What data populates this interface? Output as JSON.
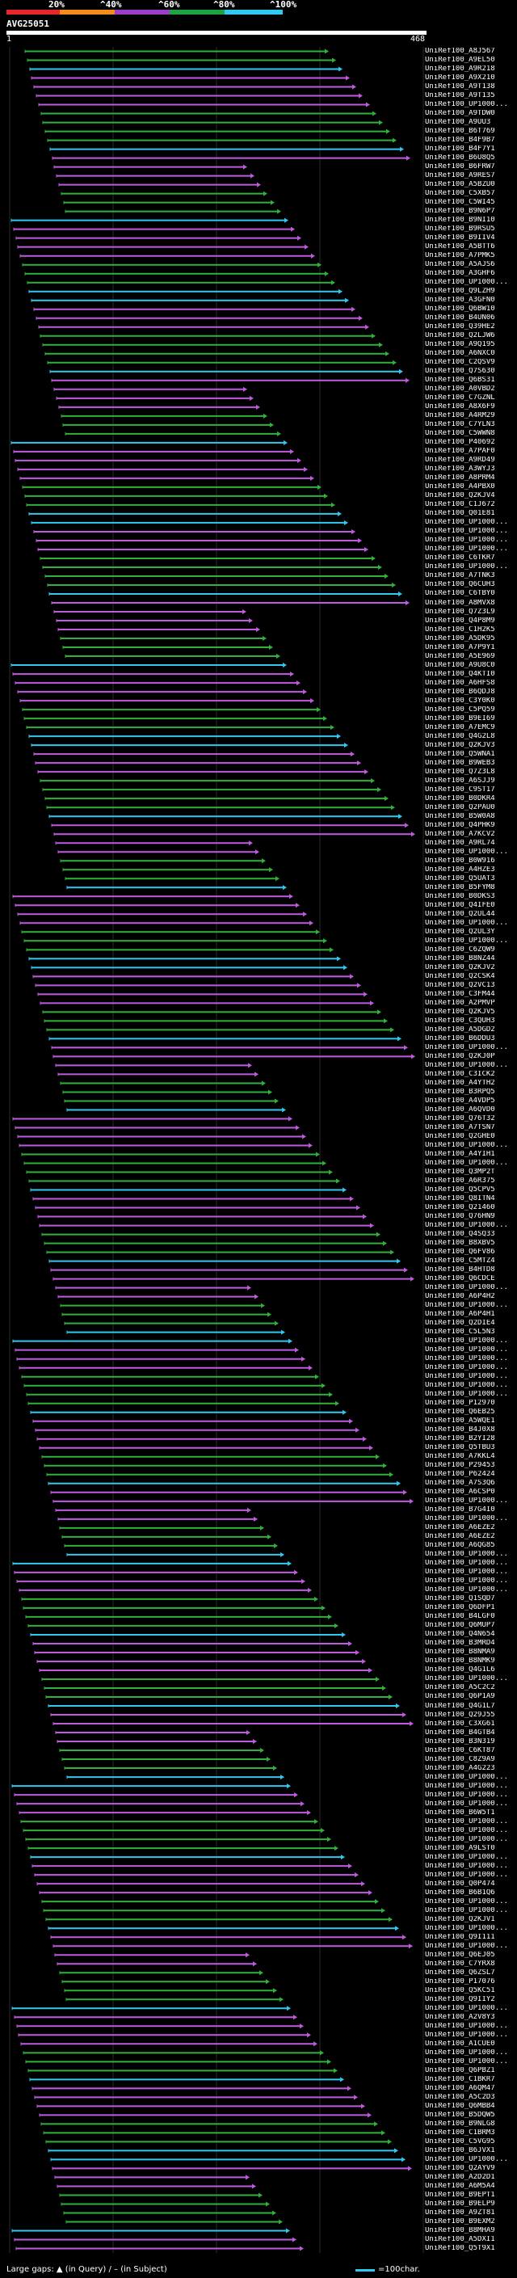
{
  "legend": {
    "labels": [
      "20%",
      "^40%",
      "^60%",
      "^80%",
      "^100%"
    ],
    "colors": [
      "#e8262b",
      "#f28c1d",
      "#9b3fcb",
      "#1fa340",
      "#30c9f0"
    ]
  },
  "query": {
    "id": "AVG25051",
    "start": "1",
    "end": "468"
  },
  "colors": {
    "magenta": "#c05be0",
    "green": "#31b03c",
    "cyan": "#2fc8f0",
    "background": "#000000",
    "grid": "#2a2a2a"
  },
  "hits": [
    "UniRef100_A8J567",
    "UniRef100_A9EL50",
    "UniRef100_A9R218",
    "UniRef100_A9X210",
    "UniRef100_A9T138",
    "UniRef100_A9T135",
    "UniRef100_UP1000...",
    "UniRef100_A9TDW0",
    "UniRef100_A9UU3",
    "UniRef100_B6T769",
    "UniRef100_B4F9B7",
    "UniRef100_B4F7Y1",
    "UniRef100_B6U8Q5",
    "UniRef100_B6FRW7",
    "UniRef100_A9RES7",
    "UniRef100_A5BZU0",
    "UniRef100_C5XB57",
    "UniRef100_C5WI45",
    "UniRef100_B9N6P7",
    "UniRef100_B9NI10",
    "UniRef100_B9RSU5",
    "UniRef100_B9IIV4",
    "UniRef100_A5BTT6",
    "UniRef100_A7PMK5",
    "UniRef100_A5AJS6",
    "UniRef100_A3GHF6",
    "UniRef100_UP1000...",
    "UniRef100_Q9LZH9",
    "UniRef100_A3GFN0",
    "UniRef100_Q6BW10",
    "UniRef100_B4UN06",
    "UniRef100_Q39HE2",
    "UniRef100_Q2LJW6",
    "UniRef100_A9Q195",
    "UniRef100_A6NXC0",
    "UniRef100_C2QSV9",
    "UniRef100_Q7S630",
    "UniRef100_Q6BS31",
    "UniRef100_A0VBD2",
    "UniRef100_C7GZNL",
    "UniRef100_A8X6F9",
    "UniRef100_A4RM29",
    "UniRef100_C7YLN3",
    "UniRef100_C5WWN8",
    "UniRef100_P40692",
    "UniRef100_A7PAF0",
    "UniRef100_A9RD49",
    "UniRef100_A3WYJ3",
    "UniRef100_A8PRM4",
    "UniRef100_A4PBX0",
    "UniRef100_Q2KJV4",
    "UniRef100_C1J672",
    "UniRef100_Q01E81",
    "UniRef100_UP1000...",
    "UniRef100_UP1000...",
    "UniRef100_UP1000...",
    "UniRef100_UP1000...",
    "UniRef100_C6TKR7",
    "UniRef100_UP1000...",
    "UniRef100_A7TNK3",
    "UniRef100_Q6CUH3",
    "UniRef100_C6TBY0",
    "UniRef100_A8MVX8",
    "UniRef100_Q7Z3L9",
    "UniRef100_Q4P8M9",
    "UniRef100_C1H2K5",
    "UniRef100_A5DK95",
    "UniRef100_A7P9Y1",
    "UniRef100_A5E969",
    "UniRef100_A9U8C0",
    "UniRef100_Q4KTI0",
    "UniRef100_A6HFS8",
    "UniRef100_B6QDJ8",
    "UniRef100_C3Y0K0",
    "UniRef100_C5PQ59",
    "UniRef100_B9EI69",
    "UniRef100_A7EMC9",
    "UniRef100_Q4G2L8",
    "UniRef100_Q2KJV3",
    "UniRef100_Q5WNA1",
    "UniRef100_B9WEB3",
    "UniRef100_Q7Z3L8",
    "UniRef100_A6SJJ9",
    "UniRef100_C9ST17",
    "UniRef100_B0DKR4",
    "UniRef100_Q2PAU0",
    "UniRef100_B5W0A8",
    "UniRef100_Q4PHK9",
    "UniRef100_A7KCV2",
    "UniRef100_A9RL74",
    "UniRef100_UP1000...",
    "UniRef100_B0W916",
    "UniRef100_A4HZE3",
    "UniRef100_Q5UAT3",
    "UniRef100_B5FYM8",
    "UniRef100_B0DKS3",
    "UniRef100_Q4IFE0",
    "UniRef100_Q2UL44",
    "UniRef100_UP1000...",
    "UniRef100_Q2UL3Y",
    "UniRef100_UP1000...",
    "UniRef100_C6ZQW9",
    "UniRef100_B8NZ44",
    "UniRef100_Q2KJV2",
    "UniRef100_Q2CSK4",
    "UniRef100_Q2VC13",
    "UniRef100_C3FM44",
    "UniRef100_A2PMVP",
    "UniRef100_Q2KJV5",
    "UniRef100_C3QUH3",
    "UniRef100_A5DGD2",
    "UniRef100_B6DDU3",
    "UniRef100_UP1000...",
    "UniRef100_Q2KJ0P",
    "UniRef100_UP1000...",
    "UniRef100_C3ICK2",
    "UniRef100_A4YTH2",
    "UniRef100_B3RPQ5",
    "UniRef100_A4VDP5",
    "UniRef100_A6QVD0",
    "UniRef100_Q76T32",
    "UniRef100_A7TSN7",
    "UniRef100_Q2GHE0",
    "UniRef100_UP1000...",
    "UniRef100_A4YIH1",
    "UniRef100_UP1000...",
    "UniRef100_Q3MP2T",
    "UniRef100_A6R375",
    "UniRef100_Q5CPV5",
    "UniRef100_Q8ITN4",
    "UniRef100_Q21460",
    "UniRef100_Q76HN9",
    "UniRef100_UP1000...",
    "UniRef100_Q4SQ33",
    "UniRef100_B8XBV5",
    "UniRef100_Q6FV86",
    "UniRef100_C5MTZ4",
    "UniRef100_B4HTD8",
    "UniRef100_Q6CDCE",
    "UniRef100_UP1000...",
    "UniRef100_A6P4H2",
    "UniRef100_UP1000...",
    "UniRef100_A6P4H1",
    "UniRef100_Q2DIE4",
    "UniRef100_C5L5N3",
    "UniRef100_UP1000...",
    "UniRef100_UP1000...",
    "UniRef100_UP1000...",
    "UniRef100_UP1000...",
    "UniRef100_UP1000...",
    "UniRef100_UP1000...",
    "UniRef100_UP1000...",
    "UniRef100_P12970",
    "UniRef100_Q6EB25",
    "UniRef100_A5WQE1",
    "UniRef100_B4J0X8",
    "UniRef100_B2YI28",
    "UniRef100_Q5TBU3",
    "UniRef100_A7KKL4",
    "UniRef100_P29453",
    "UniRef100_P62424",
    "UniRef100_A7S3Q6",
    "UniRef100_A6CSP0",
    "UniRef100_UP1000...",
    "UniRef100_B7G4I0",
    "UniRef100_UP1000...",
    "UniRef100_A6EZE2",
    "UniRef100_A6EZE2",
    "UniRef100_A6QG85",
    "UniRef100_UP1000...",
    "UniRef100_UP1000...",
    "UniRef100_UP1000...",
    "UniRef100_UP1000...",
    "UniRef100_UP1000...",
    "UniRef100_Q1SQD7",
    "UniRef100_Q6DFP1",
    "UniRef100_B4LGF0",
    "UniRef100_Q6MUP7",
    "UniRef100_Q4N654",
    "UniRef100_B3MRD4",
    "UniRef100_B8NMA9",
    "UniRef100_B8NMK9",
    "UniRef100_Q4G1L6",
    "UniRef100_UP1000...",
    "UniRef100_A5C2C2",
    "UniRef100_Q6P1A9",
    "UniRef100_Q4G1L7",
    "UniRef100_Q29J55",
    "UniRef100_C3XG61",
    "UniRef100_B4GTB4",
    "UniRef100_B3N319",
    "UniRef100_C6KT87",
    "UniRef100_C8Z9A9",
    "UniRef100_A4G223",
    "UniRef100_UP1000...",
    "UniRef100_UP1000...",
    "UniRef100_UP1000...",
    "UniRef100_UP1000...",
    "UniRef100_B6W5T1",
    "UniRef100_UP1000...",
    "UniRef100_UP1000...",
    "UniRef100_UP1000...",
    "UniRef100_A9LST0",
    "UniRef100_UP1000...",
    "UniRef100_UP1000...",
    "UniRef100_UP1000...",
    "UniRef100_Q0P474",
    "UniRef100_B6B1Q6",
    "UniRef100_UP1000...",
    "UniRef100_UP1000...",
    "UniRef100_Q2KJV1",
    "UniRef100_UP1000...",
    "UniRef100_Q9I111",
    "UniRef100_UP1000...",
    "UniRef100_Q6EJ05",
    "UniRef100_C7YRX8",
    "UniRef100_Q6ZSL7",
    "UniRef100_P17076",
    "UniRef100_Q5KC51",
    "UniRef100_Q9IIY2",
    "UniRef100_UP1000...",
    "UniRef100_A2V8Y3",
    "UniRef100_UP1000...",
    "UniRef100_UP1000...",
    "UniRef100_A1CUE0",
    "UniRef100_UP1000...",
    "UniRef100_UP1000...",
    "UniRef100_Q6PBZ1",
    "UniRef100_C1BKR7",
    "UniRef100_A6QM47",
    "UniRef100_A5C2D3",
    "UniRef100_Q6MBB4",
    "UniRef100_B5DQW5",
    "UniRef100_B9NLG8",
    "UniRef100_C1BRM3",
    "UniRef100_C5VG95",
    "UniRef100_B6JVX1",
    "UniRef100_UP1000...",
    "UniRef100_Q2AYV9",
    "UniRef100_A2D2D1",
    "UniRef100_A6M5A4",
    "UniRef100_B9EPT1",
    "UniRef100_B9ELP9",
    "UniRef100_A9ZT81",
    "UniRef100_B9EXM2",
    "UniRef100_B8MHA9",
    "UniRef100_A5DXI1",
    "UniRef100_Q5T9X1"
  ],
  "footer": {
    "gaps_label": "Large gaps:",
    "query_gap_label": "(in Query)",
    "subject_gap_label": "(in Subject)",
    "scale_label": "=100char."
  }
}
